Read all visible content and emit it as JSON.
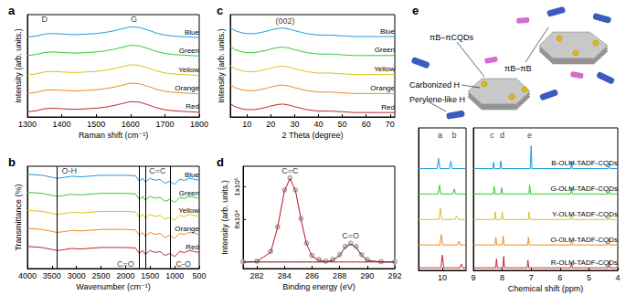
{
  "chart_data": [
    {
      "type": "line",
      "title": "a",
      "x_label": "Raman shift (cm⁻¹)",
      "y_label": "Intensity (arb. units.)",
      "xlim": [
        1300,
        1800
      ],
      "xticks": [
        1300,
        1400,
        1500,
        1600,
        1700,
        1800
      ],
      "ylim": [
        0,
        10
      ],
      "tick_labels": "x",
      "x": [
        1300,
        1325,
        1350,
        1375,
        1400,
        1425,
        1450,
        1475,
        1500,
        1525,
        1550,
        1575,
        1600,
        1625,
        1650,
        1675,
        1700,
        1725,
        1750,
        1775,
        1800
      ],
      "annotations": [
        {
          "text": "D",
          "x": 1350,
          "y": 9.55
        },
        {
          "text": "G",
          "x": 1610,
          "y": 9.55
        }
      ],
      "series": [
        {
          "name": "Blue",
          "color": "#1f9bde",
          "values": [
            7.8,
            7.9,
            8.1,
            8.15,
            8.1,
            8.05,
            8.05,
            8.1,
            8.15,
            8.25,
            8.4,
            8.6,
            8.8,
            8.75,
            8.5,
            8.2,
            8.0,
            7.9,
            7.85,
            7.8,
            7.75
          ]
        },
        {
          "name": "Green",
          "color": "#35c835",
          "values": [
            6.0,
            6.1,
            6.3,
            6.35,
            6.3,
            6.25,
            6.25,
            6.3,
            6.35,
            6.45,
            6.6,
            6.8,
            7.0,
            6.95,
            6.7,
            6.4,
            6.2,
            6.1,
            6.05,
            6.0,
            5.95
          ]
        },
        {
          "name": "Yellow",
          "color": "#d9c31c",
          "values": [
            4.1,
            4.2,
            4.4,
            4.45,
            4.4,
            4.35,
            4.35,
            4.4,
            4.45,
            4.55,
            4.7,
            4.9,
            5.1,
            5.05,
            4.8,
            4.5,
            4.3,
            4.2,
            4.15,
            4.1,
            4.05
          ]
        },
        {
          "name": "Orange",
          "color": "#f08a24",
          "values": [
            2.3,
            2.4,
            2.6,
            2.65,
            2.6,
            2.55,
            2.55,
            2.6,
            2.65,
            2.75,
            2.9,
            3.1,
            3.3,
            3.25,
            3.0,
            2.7,
            2.5,
            2.4,
            2.35,
            2.3,
            2.25
          ]
        },
        {
          "name": "Red",
          "color": "#c0282d",
          "values": [
            0.5,
            0.6,
            0.8,
            0.85,
            0.8,
            0.75,
            0.75,
            0.8,
            0.85,
            0.95,
            1.1,
            1.3,
            1.5,
            1.45,
            1.2,
            0.9,
            0.7,
            0.6,
            0.55,
            0.5,
            0.45
          ]
        }
      ]
    },
    {
      "type": "line",
      "title": "b",
      "x_label": "Wavenumber (cm⁻¹)",
      "y_label": "Transmittance (%)",
      "xlim": [
        4000,
        500
      ],
      "xticks": [
        4000,
        3500,
        3000,
        2500,
        2000,
        1500,
        1000,
        500
      ],
      "ylim": [
        -0.6,
        9.6
      ],
      "tick_labels": "x",
      "x": [
        4000,
        3700,
        3500,
        3400,
        3300,
        3100,
        2900,
        2500,
        2000,
        1800,
        1720,
        1650,
        1600,
        1500,
        1400,
        1300,
        1200,
        1100,
        1000,
        900,
        800,
        700,
        600,
        500
      ],
      "vlines": [
        3400,
        1720,
        1600,
        1100
      ],
      "annotations": [
        {
          "text": "O-H",
          "x": 3150,
          "y": 9.15
        },
        {
          "text": "C=C",
          "x": 1350,
          "y": 9.15
        },
        {
          "text": "C=O",
          "x": 2000,
          "y": -0.1
        },
        {
          "text": "C-O",
          "x": 820,
          "y": -0.1
        }
      ],
      "series": [
        {
          "name": "Blue",
          "color": "#1f9bde",
          "values": [
            8.8,
            8.7,
            8.5,
            8.4,
            8.45,
            8.6,
            8.55,
            8.7,
            8.7,
            8.65,
            8.1,
            8.4,
            8.0,
            8.4,
            8.2,
            8.3,
            7.9,
            8.1,
            7.8,
            8.3,
            8.2,
            8.4,
            8.3,
            8.2
          ]
        },
        {
          "name": "Green",
          "color": "#35c835",
          "values": [
            7.0,
            6.9,
            6.7,
            6.6,
            6.65,
            6.8,
            6.75,
            6.9,
            6.9,
            6.85,
            6.3,
            6.6,
            6.2,
            6.6,
            6.4,
            6.5,
            6.1,
            6.3,
            6.0,
            6.5,
            6.4,
            6.6,
            6.5,
            6.4
          ]
        },
        {
          "name": "Yellow",
          "color": "#d9c31c",
          "values": [
            5.2,
            5.1,
            4.9,
            4.8,
            4.85,
            5.0,
            4.95,
            5.1,
            5.1,
            5.05,
            4.5,
            4.8,
            4.4,
            4.8,
            4.6,
            4.7,
            4.3,
            4.5,
            4.2,
            4.7,
            4.6,
            4.8,
            4.7,
            4.6
          ]
        },
        {
          "name": "Orange",
          "color": "#f08a24",
          "values": [
            3.4,
            3.3,
            3.1,
            3.0,
            3.05,
            3.2,
            3.15,
            3.3,
            3.3,
            3.25,
            2.7,
            3.0,
            2.6,
            3.0,
            2.8,
            2.9,
            2.5,
            2.7,
            2.4,
            2.9,
            2.8,
            3.0,
            2.9,
            2.8
          ]
        },
        {
          "name": "Red",
          "color": "#c0282d",
          "values": [
            1.6,
            1.5,
            1.3,
            1.2,
            1.25,
            1.4,
            1.35,
            1.5,
            1.5,
            1.45,
            0.9,
            1.2,
            0.8,
            1.2,
            1.0,
            1.1,
            0.7,
            0.9,
            0.6,
            1.1,
            1.0,
            1.2,
            1.1,
            1.0
          ]
        }
      ]
    },
    {
      "type": "line",
      "title": "c",
      "x_label": "2 Theta (degree)",
      "y_label": "Intensity (arb. units.)",
      "xlim": [
        3,
        72
      ],
      "xticks": [
        10,
        20,
        30,
        40,
        50,
        60,
        70
      ],
      "ylim": [
        0,
        7.0
      ],
      "tick_labels": "x",
      "x": [
        3,
        5,
        8,
        10,
        13,
        15,
        18,
        20,
        23,
        25,
        28,
        30,
        35,
        40,
        45,
        50,
        55,
        60,
        65,
        70,
        72
      ],
      "annotations": [
        {
          "text": "(002)",
          "x": 26,
          "y": 6.55
        }
      ],
      "series": [
        {
          "name": "Blue",
          "color": "#1f9bde",
          "values": [
            6.1,
            5.9,
            5.75,
            5.7,
            5.7,
            5.75,
            5.85,
            5.95,
            6.05,
            6.08,
            6.0,
            5.9,
            5.7,
            5.6,
            5.6,
            5.55,
            5.5,
            5.5,
            5.5,
            5.5,
            5.5
          ]
        },
        {
          "name": "Green",
          "color": "#35c835",
          "values": [
            4.8,
            4.6,
            4.45,
            4.4,
            4.4,
            4.45,
            4.55,
            4.65,
            4.75,
            4.78,
            4.7,
            4.6,
            4.4,
            4.3,
            4.3,
            4.25,
            4.2,
            4.2,
            4.2,
            4.2,
            4.2
          ]
        },
        {
          "name": "Yellow",
          "color": "#d9c31c",
          "values": [
            3.5,
            3.3,
            3.15,
            3.1,
            3.1,
            3.15,
            3.25,
            3.35,
            3.45,
            3.48,
            3.4,
            3.3,
            3.1,
            3.0,
            3.0,
            2.95,
            2.9,
            2.9,
            2.9,
            2.9,
            2.9
          ]
        },
        {
          "name": "Orange",
          "color": "#f08a24",
          "values": [
            2.2,
            2.0,
            1.85,
            1.8,
            1.8,
            1.85,
            1.95,
            2.05,
            2.15,
            2.18,
            2.1,
            2.0,
            1.8,
            1.7,
            1.7,
            1.65,
            1.6,
            1.6,
            1.6,
            1.6,
            1.6
          ]
        },
        {
          "name": "Red",
          "color": "#c0282d",
          "values": [
            0.9,
            0.7,
            0.55,
            0.5,
            0.5,
            0.55,
            0.65,
            0.75,
            0.85,
            0.88,
            0.8,
            0.7,
            0.5,
            0.4,
            0.4,
            0.35,
            0.3,
            0.3,
            0.3,
            0.3,
            0.3
          ]
        }
      ]
    },
    {
      "type": "line",
      "title": "d",
      "x_label": "Binding energy (eV)",
      "y_label": "Intensity (arb. units.)",
      "xlim": [
        281,
        292
      ],
      "xticks": [
        282,
        284,
        286,
        288,
        290,
        292
      ],
      "ylim": [
        0,
        125000
      ],
      "yticks": [
        {
          "value": 60000,
          "label": "6x10⁴"
        },
        {
          "value": 100000,
          "label": "1x10⁵"
        }
      ],
      "x": [
        281,
        282,
        283,
        283.5,
        284,
        284.4,
        284.8,
        285.2,
        285.6,
        286,
        286.5,
        287,
        287.5,
        288,
        288.4,
        288.8,
        289.2,
        289.6,
        290,
        291,
        292
      ],
      "annotations": [
        {
          "text": "C=C",
          "x": 284.4,
          "y": 119000
        },
        {
          "text": "C=O",
          "x": 288.8,
          "y": 40000
        }
      ],
      "series": [
        {
          "type": "scatter",
          "marker": "o",
          "color": "#9e9e9e",
          "values": [
            8200,
            9000,
            21000,
            51000,
            96000,
            111000,
            96000,
            61000,
            31000,
            16000,
            11000,
            9000,
            11000,
            17000,
            27000,
            31000,
            27000,
            17000,
            11000,
            8500,
            8200
          ]
        },
        {
          "type": "line",
          "color": "#b3141c",
          "values": [
            8000,
            8500,
            20000,
            50000,
            95000,
            110000,
            95000,
            60000,
            30000,
            15000,
            10000,
            8500,
            8000,
            8000,
            8000,
            8000,
            8000,
            8000,
            8000,
            8000,
            8000
          ]
        },
        {
          "type": "line",
          "color": "#6b1515",
          "values": [
            8000,
            8000,
            8000,
            8000,
            8000,
            8000,
            8000,
            8000,
            8000,
            8000,
            8000,
            8000,
            10000,
            16000,
            26000,
            30000,
            26000,
            16000,
            10000,
            8000,
            8000
          ]
        }
      ]
    },
    {
      "type": "line",
      "title": "e",
      "x_label": "Chemical shift (ppm)",
      "xlim": [
        [
          10.5,
          9.5
        ],
        [
          9,
          4
        ]
      ],
      "xticks": [
        10,
        9,
        8,
        7,
        6,
        5,
        4
      ],
      "ylim": [
        0,
        5.6
      ],
      "tick_labels": "x",
      "annotations": [
        {
          "text": "a",
          "x": 10.05,
          "y": 5.3
        },
        {
          "text": "b",
          "x": 9.75,
          "y": 5.3
        },
        {
          "text": "c",
          "x": 8.35,
          "y": 5.3
        },
        {
          "text": "d",
          "x": 8.0,
          "y": 5.3
        },
        {
          "text": "e",
          "x": 7.05,
          "y": 5.3
        }
      ],
      "series": [
        {
          "name": "B-OLM-TADF-CQDs",
          "color": "#1f9bde",
          "x": [
            10.5,
            10.11,
            10.08,
            10.05,
            9.85,
            9.82,
            9.79,
            9.5,
            9.0,
            8.33,
            8.3,
            8.27,
            8.08,
            8.05,
            8.02,
            7.03,
            7.0,
            6.97,
            5.63,
            5.6,
            5.57,
            4.33,
            4.3,
            4.27,
            4.0
          ],
          "values": [
            4,
            4,
            4.4,
            4,
            4,
            4.3,
            4,
            4,
            4,
            4,
            4.25,
            4,
            4,
            4.3,
            4,
            4,
            4.9,
            4,
            4,
            4.3,
            4,
            4,
            4.2,
            4,
            4
          ]
        },
        {
          "name": "G-OLM-TADF-CQDs",
          "color": "#35c835",
          "x": [
            10.5,
            10.09,
            10.06,
            10.03,
            9.78,
            9.75,
            9.72,
            9.5,
            9.0,
            8.31,
            8.28,
            8.25,
            8.05,
            8.02,
            7.99,
            7.08,
            7.05,
            7.02,
            5.63,
            5.6,
            5.57,
            4.33,
            4.3,
            4.27,
            4.0
          ],
          "values": [
            3,
            3,
            3.35,
            3,
            3,
            3.2,
            3,
            3,
            3,
            3,
            3.3,
            3,
            3,
            3.25,
            3,
            3,
            3.35,
            3,
            3,
            3.25,
            3,
            3,
            3.15,
            3,
            3
          ]
        },
        {
          "name": "Y-OLM-TADF-CQDs",
          "color": "#d9c31c",
          "x": [
            10.5,
            10.07,
            10.04,
            10.01,
            9.73,
            9.7,
            9.67,
            9.5,
            9.0,
            8.27,
            8.24,
            8.21,
            8.03,
            8.0,
            7.97,
            7.1,
            7.07,
            7.04,
            5.63,
            5.6,
            5.57,
            4.33,
            4.3,
            4.27,
            4.0
          ],
          "values": [
            2,
            2,
            2.45,
            2,
            2,
            2.15,
            2,
            2,
            2,
            2,
            2.3,
            2,
            2,
            2.3,
            2,
            2,
            2.3,
            2,
            2,
            2.2,
            2,
            2,
            2.15,
            2,
            2
          ]
        },
        {
          "name": "O-OLM-TADF-CQDs",
          "color": "#f08a24",
          "x": [
            10.5,
            10.05,
            10.02,
            9.99,
            9.68,
            9.65,
            9.62,
            9.5,
            9.0,
            8.25,
            8.22,
            8.19,
            8.0,
            7.97,
            7.94,
            7.12,
            7.09,
            7.06,
            5.63,
            5.6,
            5.57,
            4.33,
            4.3,
            4.27,
            4.0
          ],
          "values": [
            1,
            1,
            1.4,
            1,
            1,
            1.15,
            1,
            1,
            1,
            1,
            1.3,
            1,
            1,
            1.35,
            1,
            1,
            1.3,
            1,
            1,
            1.2,
            1,
            1,
            1.25,
            1,
            1
          ]
        },
        {
          "name": "R-OLM-TADF-CQDs",
          "color": "#c0282d",
          "x": [
            10.5,
            10.03,
            10.0,
            9.97,
            9.63,
            9.6,
            9.57,
            9.5,
            9.0,
            8.23,
            8.2,
            8.17,
            7.98,
            7.95,
            7.92,
            7.14,
            7.11,
            7.08,
            5.63,
            5.6,
            5.57,
            4.33,
            4.3,
            4.27,
            4.0
          ],
          "values": [
            0.1,
            0.1,
            0.6,
            0.1,
            0.1,
            0.25,
            0.1,
            0.1,
            0.1,
            0.1,
            0.45,
            0.1,
            0.1,
            0.55,
            0.1,
            0.1,
            0.4,
            0.1,
            0.1,
            0.3,
            0.1,
            0.1,
            0.35,
            0.1,
            0.1
          ]
        }
      ]
    }
  ],
  "diagram": {
    "labels": [
      "πB–πCQDs",
      "πB–πB",
      "Carbonized H",
      "Perylene-like H"
    ]
  }
}
